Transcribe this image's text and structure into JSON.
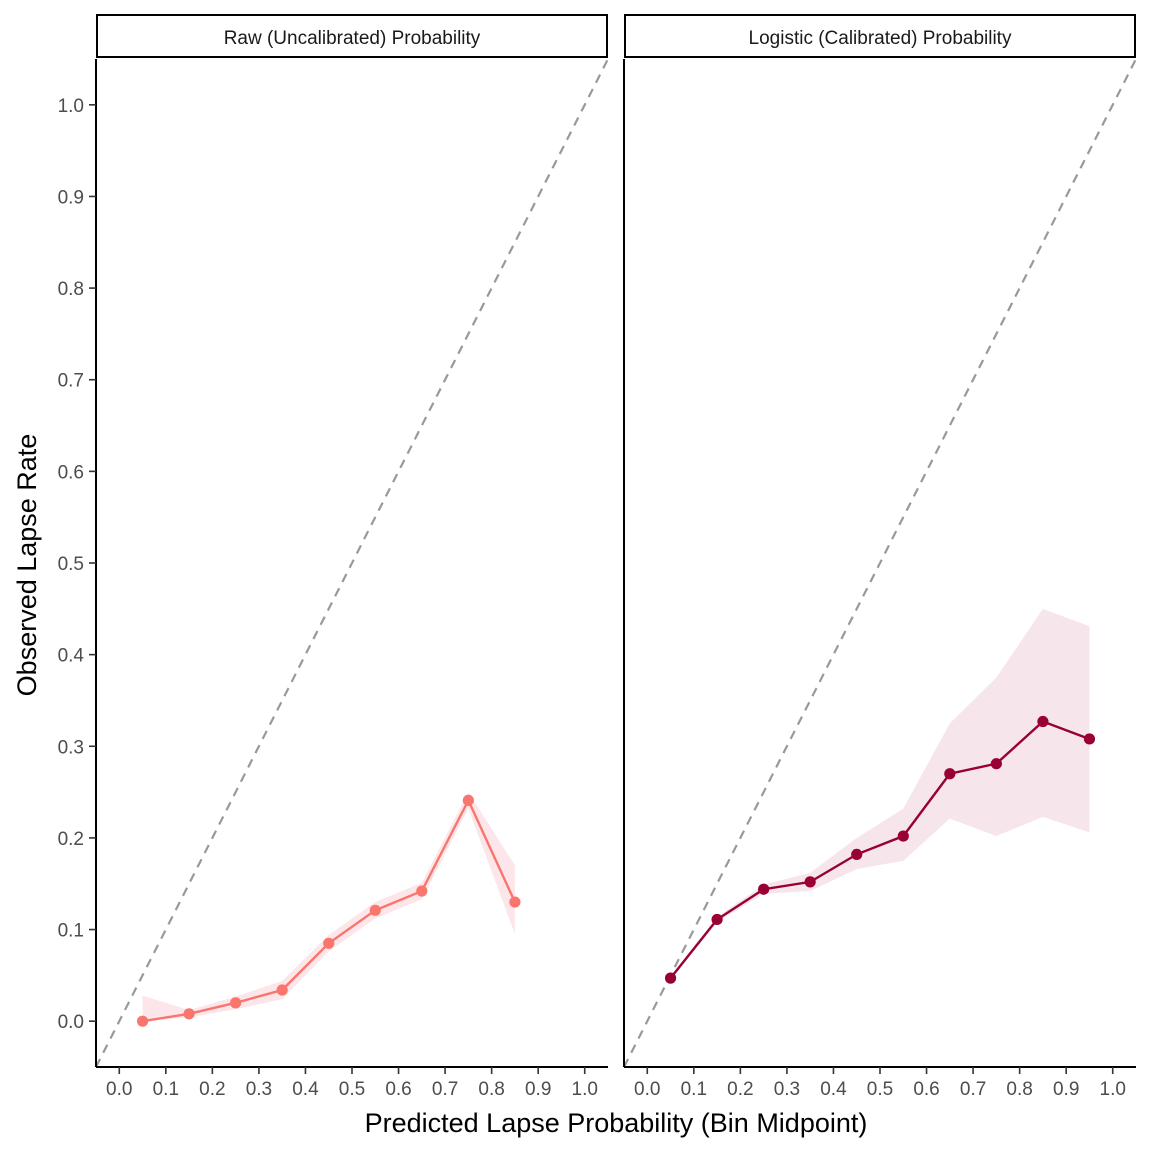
{
  "chart_data": {
    "type": "line",
    "xlabel": "Predicted Lapse Probability (Bin Midpoint)",
    "ylabel": "Observed Lapse Rate",
    "xlim": [
      -0.05,
      1.05
    ],
    "ylim": [
      -0.05,
      1.05
    ],
    "x_ticks": [
      "0.0",
      "0.1",
      "0.2",
      "0.3",
      "0.4",
      "0.5",
      "0.6",
      "0.7",
      "0.8",
      "0.9",
      "1.0"
    ],
    "y_ticks": [
      "0.0",
      "0.1",
      "0.2",
      "0.3",
      "0.4",
      "0.5",
      "0.6",
      "0.7",
      "0.8",
      "0.9",
      "1.0"
    ],
    "grid": false,
    "reference_line": "y = x (dashed, grey)",
    "panels": [
      {
        "strip": "Raw (Uncalibrated) Probability",
        "color": "#f8766d",
        "ribbon_color": "#fde6ea",
        "x": [
          0.05,
          0.15,
          0.25,
          0.35,
          0.45,
          0.55,
          0.65,
          0.75,
          0.85
        ],
        "y": [
          0.0,
          0.008,
          0.02,
          0.034,
          0.085,
          0.121,
          0.142,
          0.241,
          0.13
        ],
        "lower": [
          0.0,
          0.004,
          0.013,
          0.024,
          0.076,
          0.112,
          0.133,
          0.232,
          0.095
        ],
        "upper": [
          0.028,
          0.012,
          0.027,
          0.044,
          0.094,
          0.13,
          0.151,
          0.25,
          0.17
        ]
      },
      {
        "strip": "Logistic (Calibrated) Probability",
        "color": "#990033",
        "ribbon_color": "#f6e6ec",
        "x": [
          0.05,
          0.15,
          0.25,
          0.35,
          0.45,
          0.55,
          0.65,
          0.75,
          0.85,
          0.95
        ],
        "y": [
          0.047,
          0.111,
          0.144,
          0.152,
          0.182,
          0.202,
          0.27,
          0.281,
          0.327,
          0.308
        ],
        "lower": [
          0.045,
          0.108,
          0.139,
          0.142,
          0.166,
          0.175,
          0.221,
          0.202,
          0.223,
          0.206
        ],
        "upper": [
          0.049,
          0.114,
          0.149,
          0.162,
          0.2,
          0.232,
          0.325,
          0.375,
          0.45,
          0.431
        ]
      }
    ]
  }
}
